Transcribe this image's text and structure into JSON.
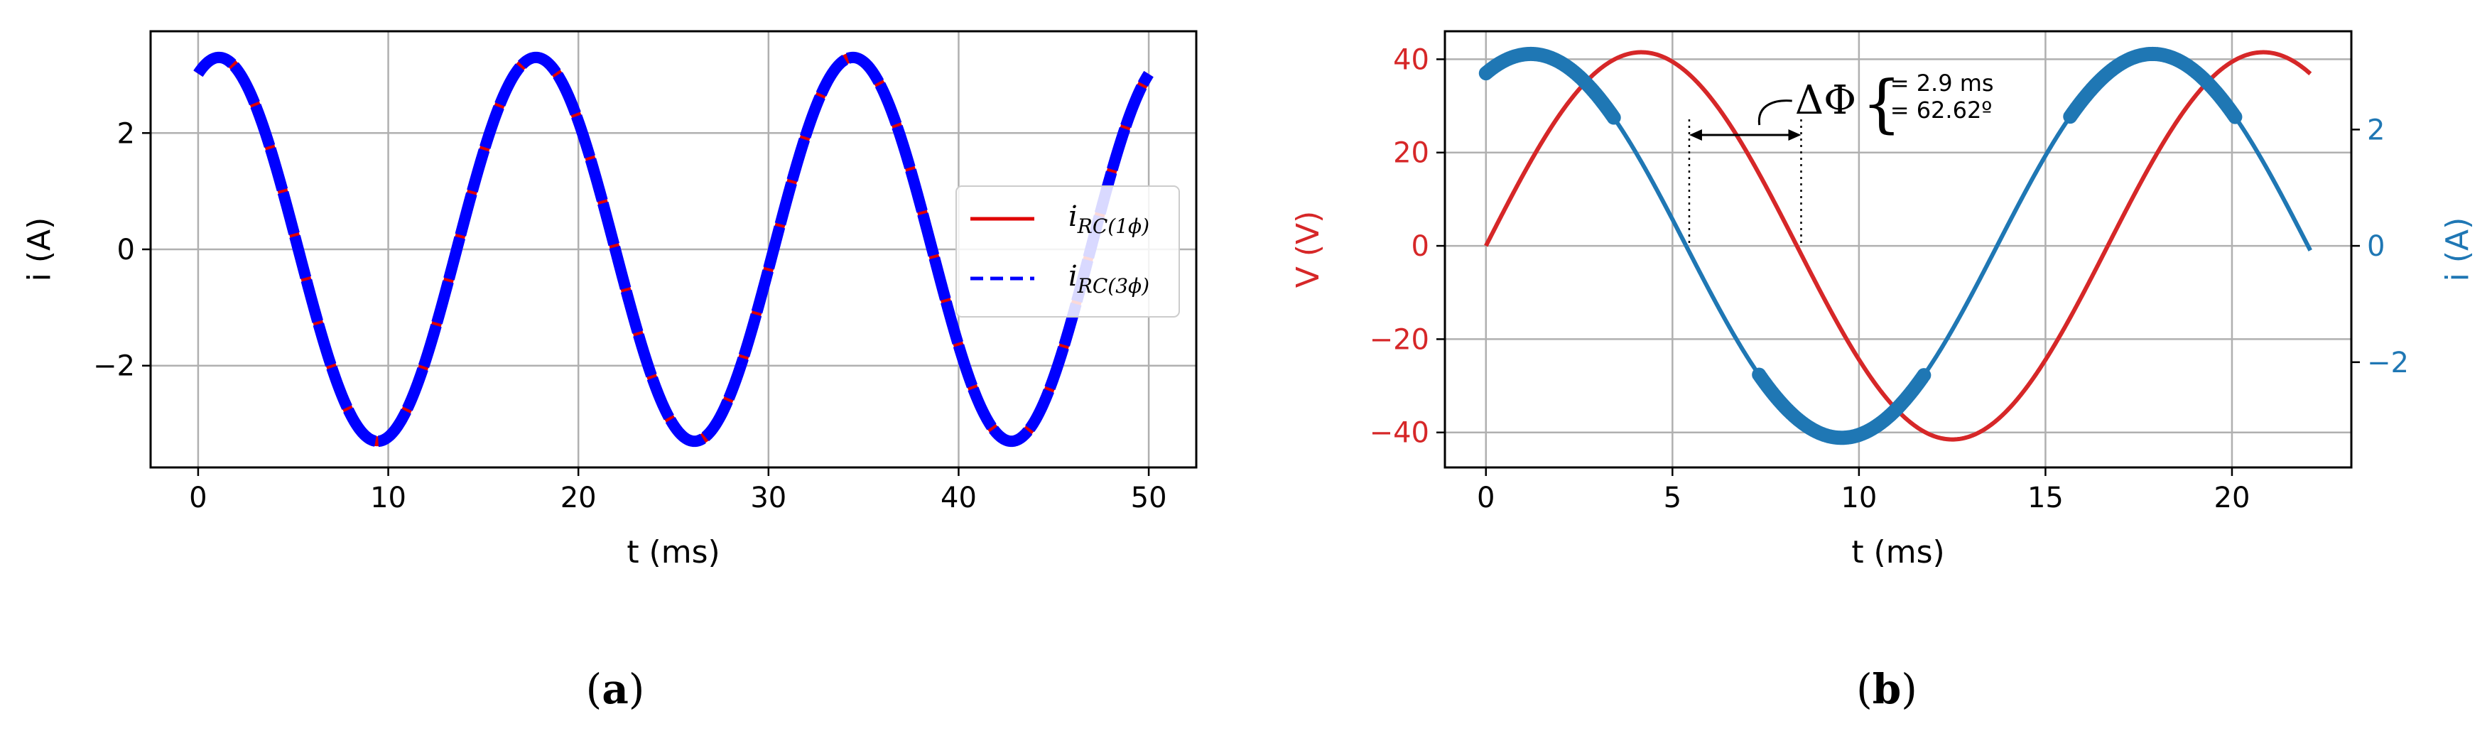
{
  "chart_data": [
    {
      "panel": "a",
      "caption": "(a)",
      "type": "line",
      "xlabel": "t (ms)",
      "ylabel": "i (A)",
      "xlim": [
        -2.5,
        52.5
      ],
      "ylim": [
        -3.75,
        3.75
      ],
      "xticks": [
        0,
        10,
        20,
        30,
        40,
        50
      ],
      "yticks": [
        -2,
        0,
        2
      ],
      "ytick_labels": [
        "−2",
        "0",
        "2"
      ],
      "grid": true,
      "legend_position": "right",
      "legend": [
        {
          "main": "i",
          "sub": "RC(1ϕ)",
          "color": "#e00000",
          "style": "solid"
        },
        {
          "main": "i",
          "sub": "RC(3ϕ)",
          "color": "#0000ff",
          "style": "dashed"
        }
      ],
      "series": [
        {
          "amplitude": 3.3,
          "period_ms": 16.67,
          "peak_at_ms": 1.1,
          "t_range": [
            0,
            50
          ],
          "color": "#e00000",
          "style": "solid"
        },
        {
          "amplitude": 3.3,
          "period_ms": 16.67,
          "peak_at_ms": 1.1,
          "t_range": [
            0,
            50
          ],
          "color": "#0000ff",
          "style": "dashed"
        }
      ]
    },
    {
      "panel": "b",
      "caption": "(b)",
      "type": "line",
      "xlabel": "t (ms)",
      "ylabel_left": "V (V)",
      "ylabel_right": "i (A)",
      "xlim": [
        -1.1,
        23.2
      ],
      "ylim_left": [
        -47.5,
        46
      ],
      "ylim_right": [
        -3.81,
        3.69
      ],
      "xticks": [
        0,
        5,
        10,
        15,
        20
      ],
      "yticks_left": [
        -40,
        -20,
        0,
        20,
        40
      ],
      "ytick_left_labels": [
        "−40",
        "−20",
        "0",
        "20",
        "40"
      ],
      "yticks_right": [
        -2,
        0,
        2
      ],
      "ytick_right_labels": [
        "−2",
        "0",
        "2"
      ],
      "grid": true,
      "left_axis_color": "#d62728",
      "right_axis_color": "#1f77b4",
      "series": [
        {
          "name_axis": "V (V)",
          "amplitude": 41.5,
          "period_ms": 16.67,
          "zero_at_ms": 0.0,
          "t_range": [
            0,
            22.1
          ],
          "color": "#d62728"
        },
        {
          "name_axis": "i (A)",
          "amplitude": 3.3,
          "period_ms": 16.67,
          "peak_at_ms": 1.2,
          "t_range": [
            0,
            22.1
          ],
          "color": "#1f77b4"
        }
      ],
      "annotation": {
        "symbol": "ΔΦ",
        "line1": "= 2.9 ms",
        "line2": "= 62.62º",
        "t_start_ms": 5.45,
        "t_end_ms": 8.45
      }
    }
  ]
}
